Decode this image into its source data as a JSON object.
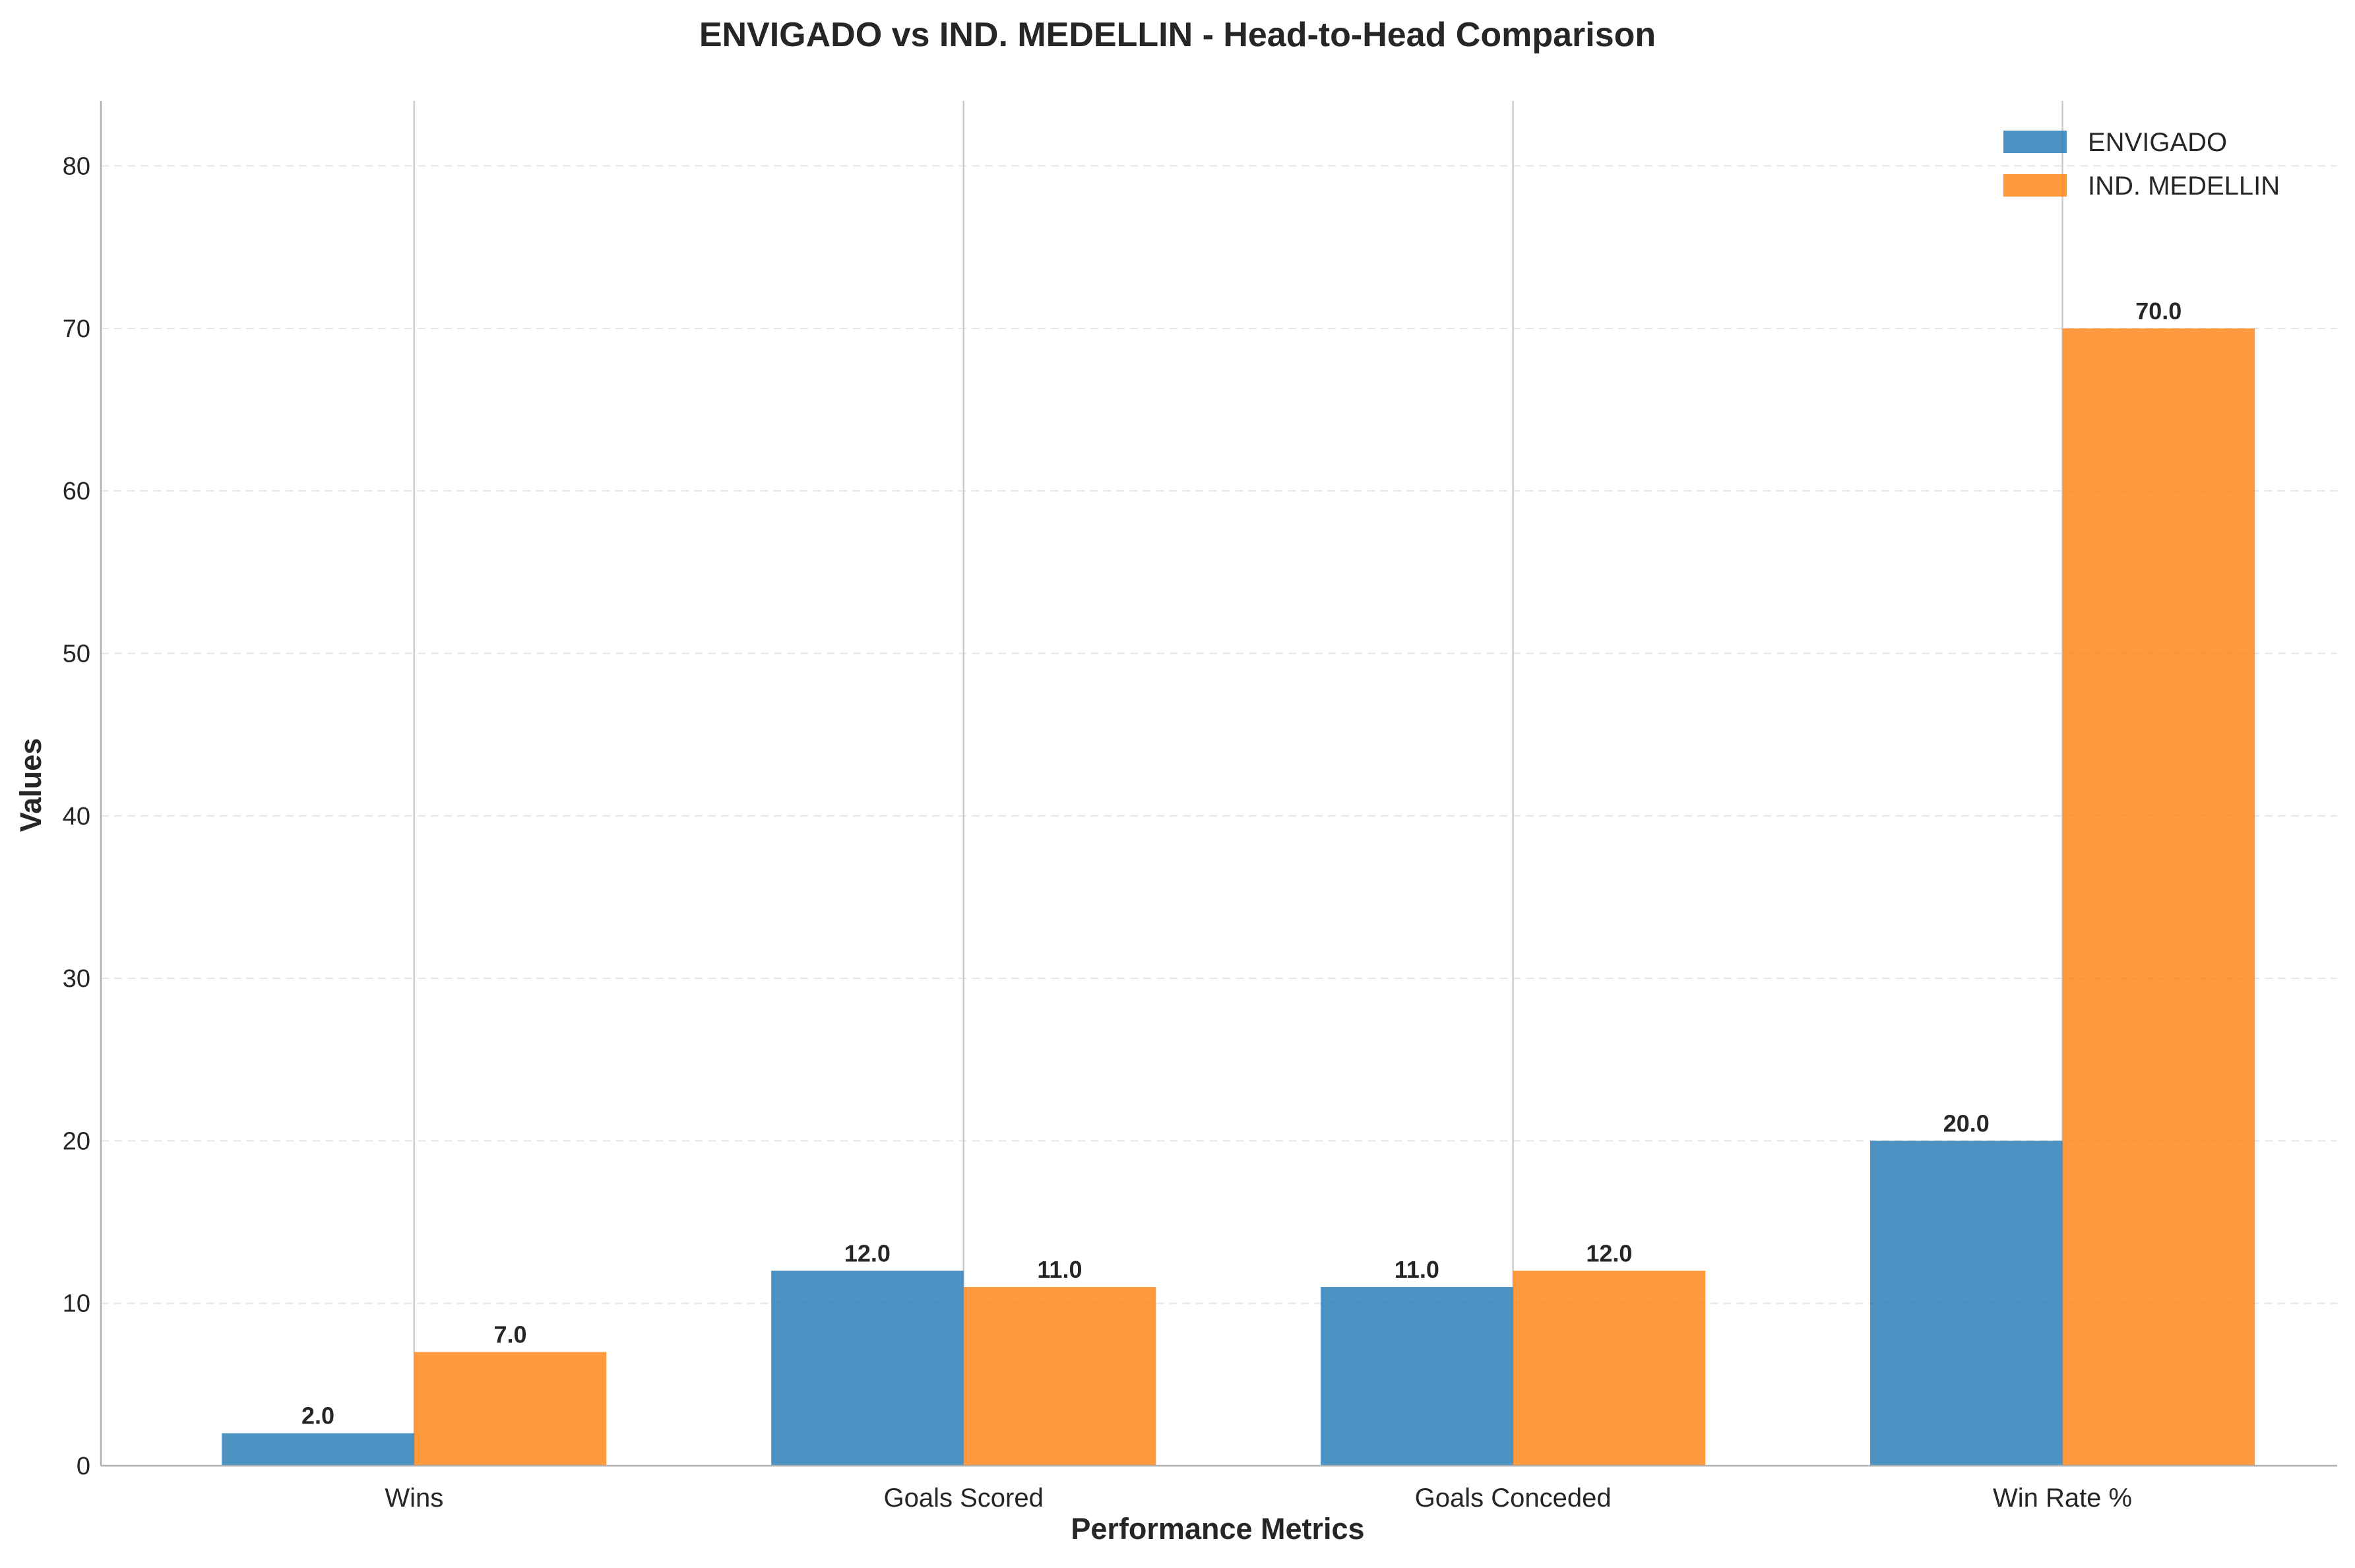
{
  "chart_data": {
    "type": "bar",
    "title": "ENVIGADO vs IND. MEDELLIN - Head-to-Head Comparison",
    "xlabel": "Performance Metrics",
    "ylabel": "Values",
    "categories": [
      "Wins",
      "Goals Scored",
      "Goals Conceded",
      "Win Rate %"
    ],
    "series": [
      {
        "name": "ENVIGADO",
        "values": [
          2.0,
          12.0,
          11.0,
          20.0
        ],
        "color": "#1f77b4",
        "labels": [
          "2.0",
          "12.0",
          "11.0",
          "20.0"
        ]
      },
      {
        "name": "IND. MEDELLIN",
        "values": [
          7.0,
          11.0,
          12.0,
          70.0
        ],
        "color": "#ff7f0e",
        "labels": [
          "7.0",
          "11.0",
          "12.0",
          "70.0"
        ]
      }
    ],
    "ylim": [
      0,
      84
    ],
    "yticks": [
      0,
      10,
      20,
      30,
      40,
      50,
      60,
      70,
      80
    ],
    "ytick_labels": [
      "0",
      "10",
      "20",
      "30",
      "40",
      "50",
      "60",
      "70",
      "80"
    ],
    "grid": "horizontal dashed",
    "legend_position": "top-right"
  }
}
